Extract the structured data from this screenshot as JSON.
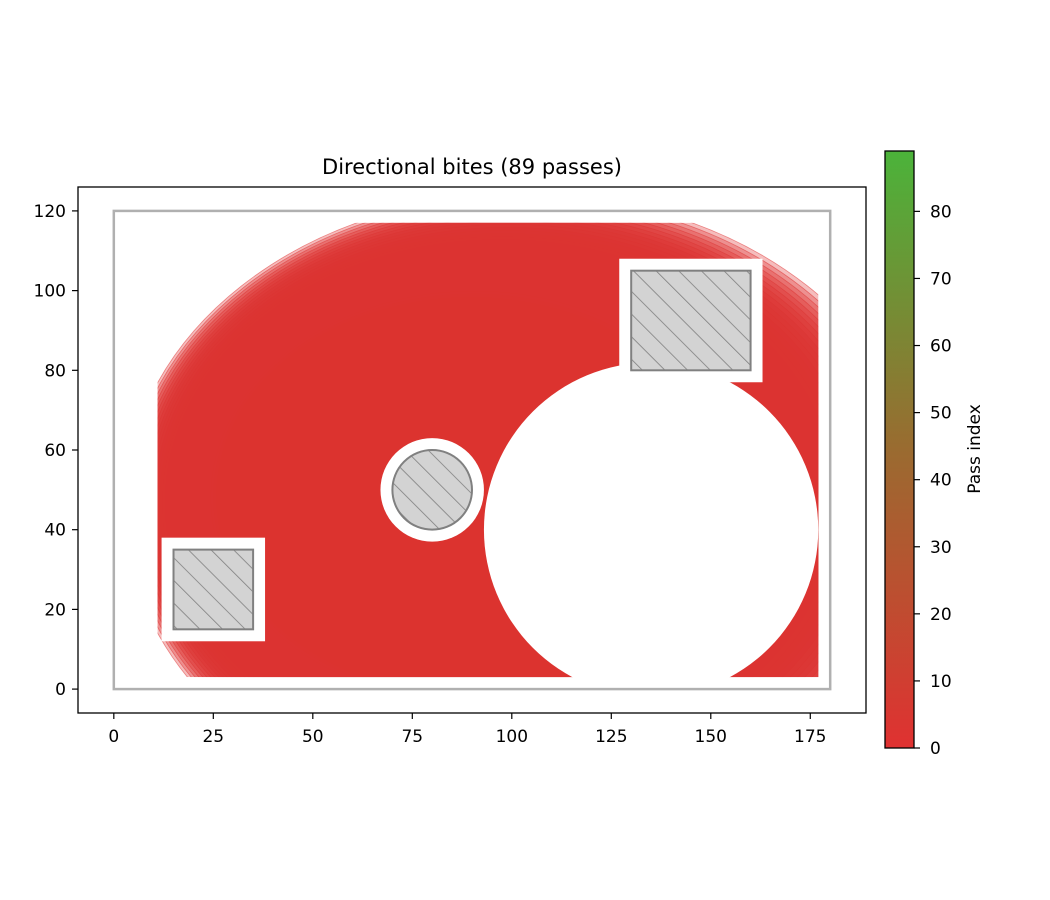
{
  "chart_data": {
    "type": "contour",
    "title": "Directional bites (89 passes)",
    "xlabel": "",
    "ylabel": "",
    "xlim": [
      -9,
      189
    ],
    "ylim": [
      -6,
      126
    ],
    "x_ticks": [
      0,
      25,
      50,
      75,
      100,
      125,
      150,
      175
    ],
    "y_ticks": [
      0,
      20,
      40,
      60,
      80,
      100,
      120
    ],
    "grid": false,
    "boundary": {
      "x": [
        0,
        180
      ],
      "y": [
        0,
        120
      ]
    },
    "obstacles": [
      {
        "shape": "rect",
        "x": [
          130,
          160
        ],
        "y": [
          80,
          105
        ],
        "hatch": "diagonal"
      },
      {
        "shape": "rect",
        "x": [
          15,
          35
        ],
        "y": [
          15,
          35
        ],
        "hatch": "diagonal"
      },
      {
        "shape": "circle",
        "cx": 80,
        "cy": 50,
        "r": 10,
        "hatch": "diagonal"
      }
    ],
    "unmachined_circle": {
      "cx": 135,
      "cy": 40,
      "r": 42
    },
    "pass_field": {
      "center": [
        68,
        53
      ],
      "passes": 89,
      "direction": "spiral outward from center"
    },
    "colorbar": {
      "label": "Pass index",
      "min": 0,
      "max": 89,
      "ticks": [
        0,
        10,
        20,
        30,
        40,
        50,
        60,
        70,
        80
      ],
      "color_low": "#e03131",
      "color_high": "#4bb33a"
    }
  }
}
